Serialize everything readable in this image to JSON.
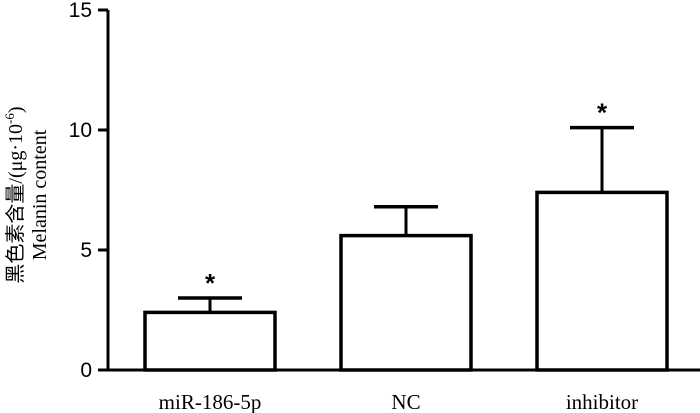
{
  "chart_data": {
    "type": "bar",
    "title": "",
    "xlabel": "",
    "ylabel_line1": "黑色素含量/(μg·10",
    "ylabel_sup": "-6",
    "ylabel_line1_end": ")",
    "ylabel_line2": "Melanin content",
    "ylim": [
      0,
      15
    ],
    "yticks": [
      0,
      5,
      10,
      15
    ],
    "categories": [
      "miR-186-5p",
      "NC",
      "inhibitor"
    ],
    "values": [
      2.4,
      5.6,
      7.4
    ],
    "errors": [
      0.6,
      1.2,
      2.7
    ],
    "significance": [
      "*",
      "",
      "*"
    ],
    "bar_fill": "#ffffff",
    "bar_stroke": "#000000",
    "grid": false,
    "legend": "none"
  }
}
